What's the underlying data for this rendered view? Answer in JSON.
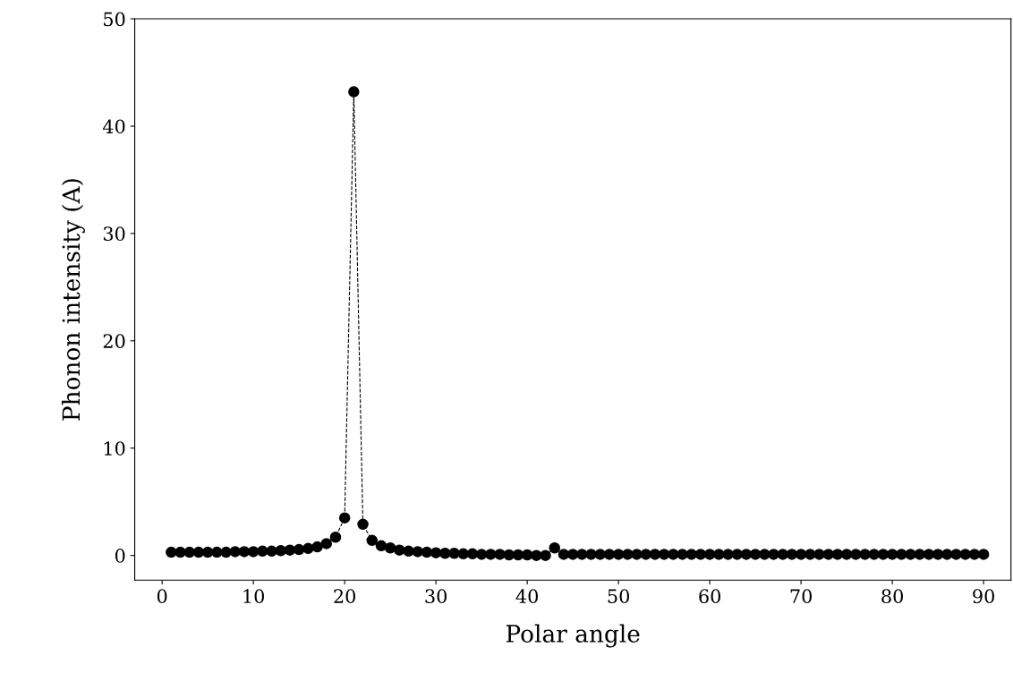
{
  "chart_data": {
    "type": "line",
    "xlabel": "Polar angle",
    "ylabel": "Phonon intensity (A)",
    "x": [
      1,
      2,
      3,
      4,
      5,
      6,
      7,
      8,
      9,
      10,
      11,
      12,
      13,
      14,
      15,
      16,
      17,
      18,
      19,
      20,
      21,
      22,
      23,
      24,
      25,
      26,
      27,
      28,
      29,
      30,
      31,
      32,
      33,
      34,
      35,
      36,
      37,
      38,
      39,
      40,
      41,
      42,
      43,
      44,
      45,
      46,
      47,
      48,
      49,
      50,
      51,
      52,
      53,
      54,
      55,
      56,
      57,
      58,
      59,
      60,
      61,
      62,
      63,
      64,
      65,
      66,
      67,
      68,
      69,
      70,
      71,
      72,
      73,
      74,
      75,
      76,
      77,
      78,
      79,
      80,
      81,
      82,
      83,
      84,
      85,
      86,
      87,
      88,
      89,
      90
    ],
    "series": [
      {
        "color": "#000000",
        "values": [
          0.3,
          0.3,
          0.3,
          0.3,
          0.3,
          0.3,
          0.3,
          0.35,
          0.35,
          0.35,
          0.4,
          0.4,
          0.45,
          0.5,
          0.55,
          0.65,
          0.8,
          1.1,
          1.7,
          3.5,
          43.2,
          2.9,
          1.4,
          0.9,
          0.7,
          0.5,
          0.4,
          0.35,
          0.3,
          0.25,
          0.2,
          0.2,
          0.15,
          0.15,
          0.1,
          0.1,
          0.1,
          0.05,
          0.05,
          0.05,
          0,
          0,
          0.7,
          0.1,
          0.1,
          0.1,
          0.1,
          0.1,
          0.1,
          0.1,
          0.1,
          0.1,
          0.1,
          0.1,
          0.1,
          0.1,
          0.1,
          0.1,
          0.1,
          0.1,
          0.1,
          0.1,
          0.1,
          0.1,
          0.1,
          0.1,
          0.1,
          0.1,
          0.1,
          0.1,
          0.1,
          0.1,
          0.1,
          0.1,
          0.1,
          0.1,
          0.1,
          0.1,
          0.1,
          0.1,
          0.1,
          0.1,
          0.1,
          0.1,
          0.1,
          0.1,
          0.1,
          0.1,
          0.1,
          0.1
        ]
      }
    ],
    "marker": "circle",
    "line_style": "dashed",
    "grid": false,
    "legend": false,
    "xlim": [
      -3,
      93
    ],
    "xticks": [
      0,
      10,
      20,
      30,
      40,
      50,
      60,
      70,
      80,
      90
    ],
    "ylim": [
      -2.3,
      50
    ],
    "yticks": [
      0,
      10,
      20,
      30,
      40,
      50
    ]
  }
}
